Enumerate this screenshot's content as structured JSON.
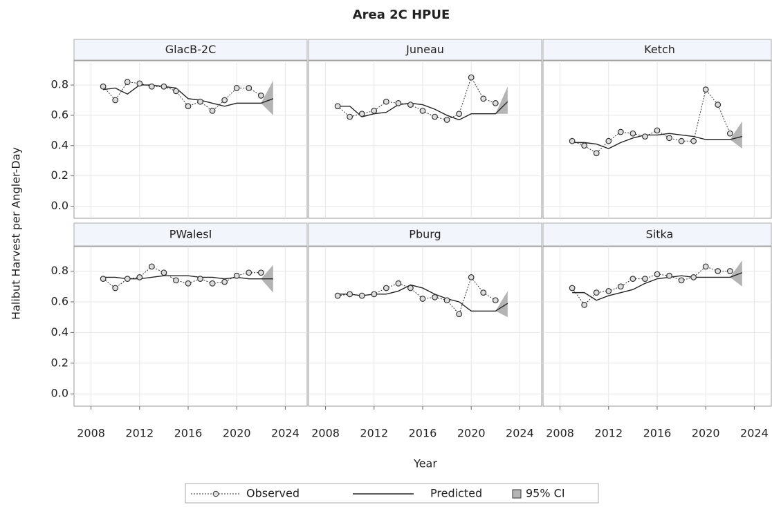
{
  "chart_data": {
    "type": "panel-line",
    "title": "Area 2C HPUE",
    "x_label": "Year",
    "y_label": "Halibut Harvest per Angler-Day",
    "xlim": [
      2006.6,
      2025.8
    ],
    "xticks": [
      2008,
      2012,
      2016,
      2020,
      2024
    ],
    "ylim": [
      -0.08,
      0.96
    ],
    "yticks": [
      {
        "value": 0,
        "label": "0.0"
      },
      0.2,
      0.4,
      0.6,
      0.8
    ],
    "grid": true,
    "x": [
      2009,
      2010,
      2011,
      2012,
      2013,
      2014,
      2015,
      2016,
      2017,
      2018,
      2019,
      2020,
      2021,
      2022,
      2023
    ],
    "ci_x": [
      2022,
      2023
    ],
    "series": [
      {
        "name": "Observed",
        "color": "#333333"
      },
      {
        "name": "Predicted",
        "color": "#222222"
      }
    ],
    "ci_name": "95% CI",
    "ci_color": "#b4b4b4",
    "panels": [
      {
        "name": "GlacB-2C",
        "observed": [
          0.79,
          0.7,
          0.82,
          0.81,
          0.79,
          0.79,
          0.76,
          0.66,
          0.69,
          0.63,
          0.7,
          0.78,
          0.78,
          0.73,
          null
        ],
        "predicted": [
          0.77,
          0.78,
          0.74,
          0.8,
          0.8,
          0.79,
          0.78,
          0.71,
          0.7,
          0.68,
          0.66,
          0.68,
          0.68,
          0.68,
          0.71
        ],
        "ci_lower": [
          0.68,
          0.6
        ],
        "ci_upper": [
          0.68,
          0.83
        ]
      },
      {
        "name": "Juneau",
        "observed": [
          0.66,
          0.59,
          0.61,
          0.63,
          0.69,
          0.68,
          0.67,
          0.63,
          0.59,
          0.57,
          0.61,
          0.85,
          0.71,
          0.68,
          null
        ],
        "predicted": [
          0.66,
          0.66,
          0.59,
          0.61,
          0.62,
          0.67,
          0.68,
          0.67,
          0.64,
          0.6,
          0.57,
          0.61,
          0.61,
          0.61,
          0.69
        ],
        "ci_lower": [
          0.61,
          0.61
        ],
        "ci_upper": [
          0.61,
          0.79
        ]
      },
      {
        "name": "Ketch",
        "observed": [
          0.43,
          0.4,
          0.35,
          0.43,
          0.49,
          0.48,
          0.46,
          0.5,
          0.45,
          0.43,
          0.43,
          0.77,
          0.67,
          0.48,
          null
        ],
        "predicted": [
          0.42,
          0.42,
          0.41,
          0.38,
          0.42,
          0.45,
          0.47,
          0.47,
          0.48,
          0.47,
          0.46,
          0.44,
          0.44,
          0.44,
          0.46
        ],
        "ci_lower": [
          0.44,
          0.38
        ],
        "ci_upper": [
          0.44,
          0.56
        ]
      },
      {
        "name": "PWalesI",
        "observed": [
          0.75,
          0.69,
          0.75,
          0.76,
          0.83,
          0.79,
          0.74,
          0.72,
          0.75,
          0.72,
          0.73,
          0.77,
          0.79,
          0.79,
          null
        ],
        "predicted": [
          0.76,
          0.76,
          0.75,
          0.75,
          0.76,
          0.77,
          0.77,
          0.77,
          0.76,
          0.76,
          0.75,
          0.76,
          0.75,
          0.75,
          0.75
        ],
        "ci_lower": [
          0.75,
          0.66
        ],
        "ci_upper": [
          0.75,
          0.84
        ]
      },
      {
        "name": "Pburg",
        "observed": [
          0.64,
          0.65,
          0.64,
          0.65,
          0.69,
          0.72,
          0.69,
          0.62,
          0.63,
          0.61,
          0.52,
          0.76,
          0.66,
          0.61,
          null
        ],
        "predicted": [
          0.65,
          0.65,
          0.64,
          0.65,
          0.65,
          0.67,
          0.71,
          0.69,
          0.65,
          0.62,
          0.6,
          0.54,
          0.54,
          0.54,
          0.59
        ],
        "ci_lower": [
          0.54,
          0.5
        ],
        "ci_upper": [
          0.54,
          0.67
        ]
      },
      {
        "name": "Sitka",
        "observed": [
          0.69,
          0.58,
          0.66,
          0.67,
          0.7,
          0.75,
          0.75,
          0.78,
          0.77,
          0.74,
          0.76,
          0.83,
          0.8,
          0.8,
          null
        ],
        "predicted": [
          0.66,
          0.66,
          0.61,
          0.64,
          0.66,
          0.68,
          0.72,
          0.75,
          0.76,
          0.77,
          0.76,
          0.76,
          0.76,
          0.76,
          0.79
        ],
        "ci_lower": [
          0.76,
          0.7
        ],
        "ci_upper": [
          0.76,
          0.87
        ]
      }
    ]
  }
}
